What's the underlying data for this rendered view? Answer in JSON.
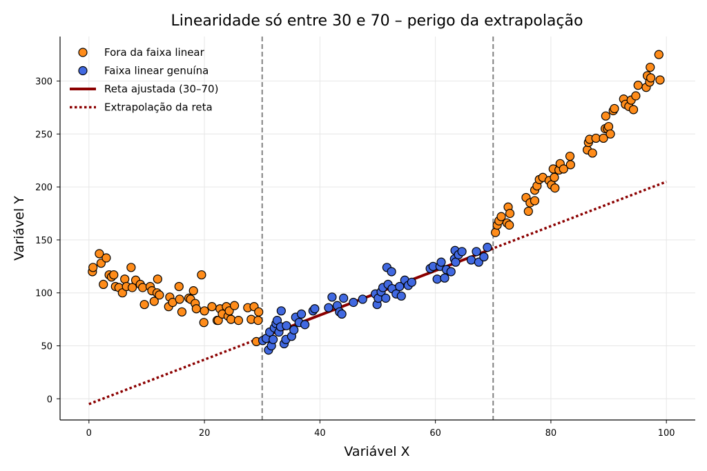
{
  "chart_data": {
    "type": "scatter",
    "title": "Linearidade só entre 30 e 70 – perigo da extrapolação",
    "xlabel": "Variável X",
    "ylabel": "Variável Y",
    "xlim": [
      -5,
      105
    ],
    "ylim": [
      -20,
      342
    ],
    "xticks": [
      0,
      20,
      40,
      60,
      80,
      100
    ],
    "yticks": [
      0,
      50,
      100,
      150,
      200,
      250,
      300
    ],
    "grid": true,
    "legend_position": "top-left",
    "vertical_lines": [
      30,
      70
    ],
    "colors": {
      "outside": "#ff8c1a",
      "linear": "#4169e1",
      "fit": "#8b0000",
      "vline": "#808080",
      "grid": "#e6e6e6"
    },
    "series": [
      {
        "name": "Fora da faixa linear",
        "kind": "scatter",
        "color": "#ff8c1a",
        "points": [
          [
            0.6,
            120
          ],
          [
            0.7,
            124
          ],
          [
            1.8,
            137
          ],
          [
            2.1,
            128
          ],
          [
            2.5,
            108
          ],
          [
            3.0,
            133
          ],
          [
            3.5,
            117
          ],
          [
            3.9,
            115
          ],
          [
            4.3,
            117
          ],
          [
            4.6,
            106
          ],
          [
            5.2,
            105
          ],
          [
            5.8,
            100
          ],
          [
            6.2,
            113
          ],
          [
            6.5,
            106
          ],
          [
            7.3,
            124
          ],
          [
            7.5,
            105
          ],
          [
            8.1,
            112
          ],
          [
            8.9,
            108
          ],
          [
            9.3,
            105
          ],
          [
            9.6,
            89
          ],
          [
            10.6,
            106
          ],
          [
            10.9,
            102
          ],
          [
            11.3,
            92
          ],
          [
            11.8,
            100
          ],
          [
            11.9,
            113
          ],
          [
            12.2,
            98
          ],
          [
            13.8,
            87
          ],
          [
            14.0,
            96
          ],
          [
            14.5,
            91
          ],
          [
            15.6,
            106
          ],
          [
            15.7,
            94
          ],
          [
            16.1,
            82
          ],
          [
            17.3,
            95
          ],
          [
            17.6,
            94
          ],
          [
            18.1,
            102
          ],
          [
            18.4,
            90
          ],
          [
            18.6,
            85
          ],
          [
            19.5,
            117
          ],
          [
            19.9,
            72
          ],
          [
            20.0,
            83
          ],
          [
            21.3,
            87
          ],
          [
            22.2,
            74
          ],
          [
            22.4,
            74
          ],
          [
            22.7,
            85
          ],
          [
            23.1,
            80
          ],
          [
            23.8,
            87
          ],
          [
            24.1,
            78
          ],
          [
            24.3,
            83
          ],
          [
            24.6,
            75
          ],
          [
            25.2,
            88
          ],
          [
            25.9,
            74
          ],
          [
            27.5,
            86
          ],
          [
            28.1,
            75
          ],
          [
            28.6,
            87
          ],
          [
            29.3,
            74
          ],
          [
            29.4,
            82
          ],
          [
            29.0,
            54
          ],
          [
            70.4,
            157
          ],
          [
            70.7,
            164
          ],
          [
            71.0,
            168
          ],
          [
            71.4,
            172
          ],
          [
            72.4,
            166
          ],
          [
            72.6,
            181
          ],
          [
            72.9,
            175
          ],
          [
            72.8,
            164
          ],
          [
            75.7,
            190
          ],
          [
            76.1,
            177
          ],
          [
            76.4,
            185
          ],
          [
            77.2,
            197
          ],
          [
            77.2,
            187
          ],
          [
            77.6,
            201
          ],
          [
            78.0,
            207
          ],
          [
            78.6,
            209
          ],
          [
            79.7,
            206
          ],
          [
            80.1,
            202
          ],
          [
            80.4,
            217
          ],
          [
            80.6,
            209
          ],
          [
            80.7,
            199
          ],
          [
            81.4,
            216
          ],
          [
            81.6,
            222
          ],
          [
            82.2,
            217
          ],
          [
            83.3,
            229
          ],
          [
            83.4,
            221
          ],
          [
            86.3,
            235
          ],
          [
            86.5,
            242
          ],
          [
            86.7,
            245
          ],
          [
            87.2,
            232
          ],
          [
            87.8,
            246
          ],
          [
            89.1,
            246
          ],
          [
            89.4,
            255
          ],
          [
            89.5,
            267
          ],
          [
            89.8,
            255
          ],
          [
            90.0,
            257
          ],
          [
            90.3,
            250
          ],
          [
            90.8,
            272
          ],
          [
            91.0,
            274
          ],
          [
            92.6,
            283
          ],
          [
            92.9,
            278
          ],
          [
            93.5,
            276
          ],
          [
            93.9,
            282
          ],
          [
            94.3,
            273
          ],
          [
            94.7,
            286
          ],
          [
            95.1,
            296
          ],
          [
            96.5,
            294
          ],
          [
            96.7,
            305
          ],
          [
            97.1,
            299
          ],
          [
            97.3,
            303
          ],
          [
            97.2,
            313
          ],
          [
            98.7,
            325
          ],
          [
            98.9,
            301
          ]
        ]
      },
      {
        "name": "Faixa linear genuína",
        "kind": "scatter",
        "color": "#4169e1",
        "points": [
          [
            30.1,
            55
          ],
          [
            30.7,
            57
          ],
          [
            31.1,
            46
          ],
          [
            31.3,
            63
          ],
          [
            31.6,
            50
          ],
          [
            31.9,
            56
          ],
          [
            32.1,
            67
          ],
          [
            32.4,
            71
          ],
          [
            32.6,
            74
          ],
          [
            32.9,
            63
          ],
          [
            33.2,
            68
          ],
          [
            33.3,
            83
          ],
          [
            33.8,
            52
          ],
          [
            34.1,
            56
          ],
          [
            34.2,
            69
          ],
          [
            35.1,
            59
          ],
          [
            35.5,
            65
          ],
          [
            35.8,
            77
          ],
          [
            36.4,
            72
          ],
          [
            36.8,
            80
          ],
          [
            37.4,
            70
          ],
          [
            38.8,
            83
          ],
          [
            39.1,
            85
          ],
          [
            41.5,
            86
          ],
          [
            42.1,
            96
          ],
          [
            43.0,
            88
          ],
          [
            43.4,
            82
          ],
          [
            43.8,
            80
          ],
          [
            44.1,
            95
          ],
          [
            45.8,
            91
          ],
          [
            47.4,
            94
          ],
          [
            49.6,
            99
          ],
          [
            49.9,
            89
          ],
          [
            50.1,
            95
          ],
          [
            50.6,
            101
          ],
          [
            50.9,
            105
          ],
          [
            51.4,
            95
          ],
          [
            51.6,
            124
          ],
          [
            51.8,
            108
          ],
          [
            52.4,
            120
          ],
          [
            52.5,
            104
          ],
          [
            53.2,
            99
          ],
          [
            53.8,
            106
          ],
          [
            54.1,
            97
          ],
          [
            54.7,
            112
          ],
          [
            55.3,
            107
          ],
          [
            55.9,
            110
          ],
          [
            59.1,
            123
          ],
          [
            59.6,
            125
          ],
          [
            60.3,
            113
          ],
          [
            60.8,
            125
          ],
          [
            61.0,
            129
          ],
          [
            61.6,
            114
          ],
          [
            61.9,
            122
          ],
          [
            62.7,
            120
          ],
          [
            63.3,
            132
          ],
          [
            63.4,
            140
          ],
          [
            63.5,
            129
          ],
          [
            64.0,
            136
          ],
          [
            64.6,
            139
          ],
          [
            66.2,
            131
          ],
          [
            67.1,
            139
          ],
          [
            67.5,
            129
          ],
          [
            68.4,
            134
          ],
          [
            69.0,
            143
          ]
        ]
      }
    ],
    "lines": [
      {
        "name": "Reta ajustada (30–70)",
        "style": "solid",
        "color": "#8b0000",
        "x": [
          30,
          70
        ],
        "y": [
          58,
          142
        ]
      },
      {
        "name": "Extrapolação da reta",
        "style": "dotted",
        "color": "#8b0000",
        "x": [
          0,
          100
        ],
        "y": [
          -5,
          205
        ]
      }
    ]
  }
}
